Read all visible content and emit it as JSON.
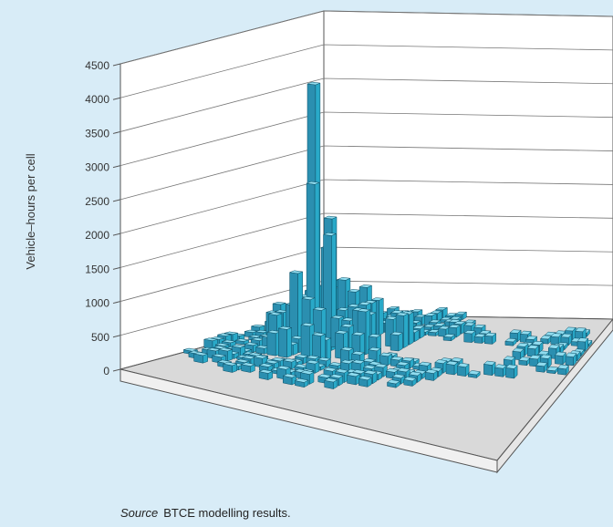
{
  "chart_data": {
    "type": "bar",
    "subtype": "3d-grid",
    "ylabel": "Vehicle–hours per cell",
    "ylim": [
      0,
      4500
    ],
    "yticks": [
      "0",
      "500",
      "1000",
      "1500",
      "2000",
      "2500",
      "3000",
      "3500",
      "4000",
      "4500"
    ],
    "grid": true,
    "bar_color": "#29a9c8",
    "peak_value": 4100,
    "notable_bars": [
      {
        "value": 4100
      },
      {
        "value": 2600
      },
      {
        "value": 2000
      },
      {
        "value": 1800
      },
      {
        "value": 1500
      },
      {
        "value": 1200
      },
      {
        "value": 1000
      },
      {
        "value": 900
      },
      {
        "value": 800
      }
    ]
  },
  "source": {
    "label": "Source",
    "text": "BTCE modelling results."
  }
}
